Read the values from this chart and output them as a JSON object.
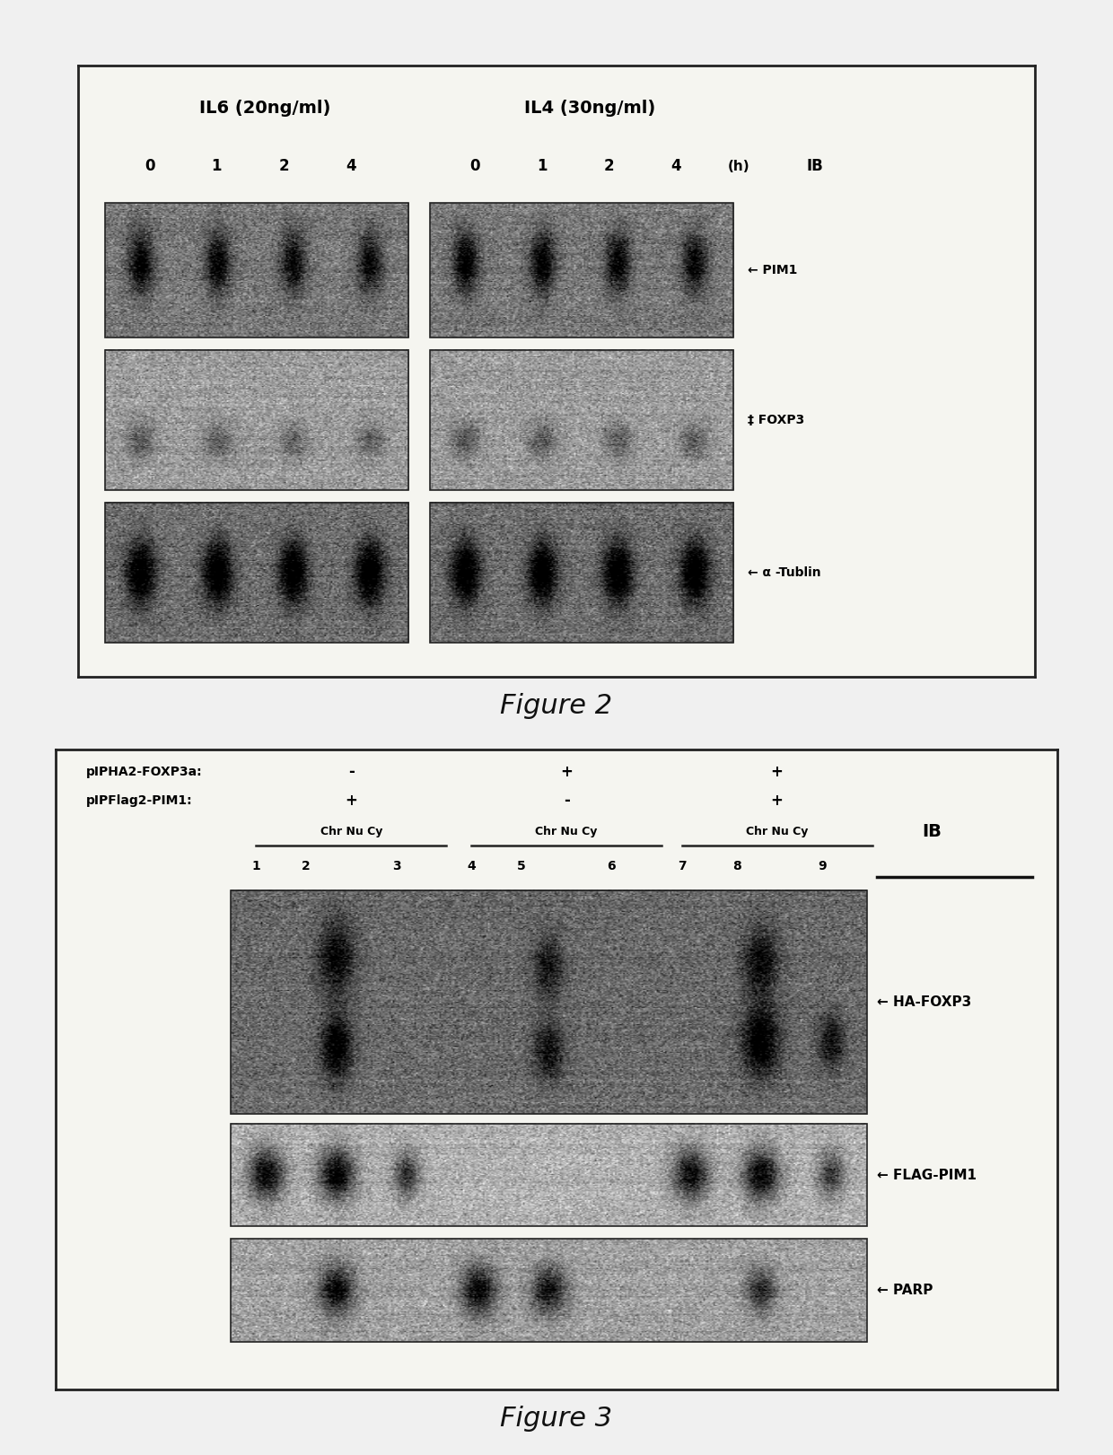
{
  "page_bg": "#f0f0f0",
  "fig2": {
    "title": "Figure 2",
    "header1_left": "IL6 (20ng/ml)",
    "header1_right": "IL4 (30ng/ml)",
    "timepoints": [
      "0",
      "1",
      "2",
      "4"
    ],
    "h_label": "(h)",
    "ib_label": "IB",
    "labels": [
      "PIM1",
      "FOXP3",
      "α -Tublin"
    ],
    "label_prefix": [
      "← ",
      "‡ ",
      "← "
    ],
    "outer_bg": "#f5f5f0",
    "border_color": "#222222",
    "gel_left_bg": "#8a8a8a",
    "gel_right_bg": "#8a8a8a",
    "row_bgs": [
      "#7a7a7a",
      "#a0a0a0",
      "#6e6e6e"
    ]
  },
  "fig3": {
    "title": "Figure 3",
    "row1_label": "pIPHA2-FOXP3a:",
    "row1_vals": [
      "-",
      "+",
      "+"
    ],
    "row2_label": "pIPFlag2-PIM1:",
    "row2_vals": [
      "+",
      "-",
      "+"
    ],
    "group_labels": [
      "Chr Nu Cy",
      "Chr Nu Cy",
      "Chr Nu Cy"
    ],
    "col_nums": [
      "1",
      "2",
      "3",
      "4",
      "5",
      "6",
      "7",
      "8",
      "9"
    ],
    "ib_label": "IB",
    "panel_labels": [
      "← HA-FOXP3",
      "← FLAG-PIM1",
      "← PARP"
    ],
    "outer_bg": "#f5f5f0",
    "border_color": "#222222",
    "panel1_bg": "#707070",
    "panel2_bg": "#b8b8b8",
    "panel3_bg": "#a8a8a8"
  }
}
